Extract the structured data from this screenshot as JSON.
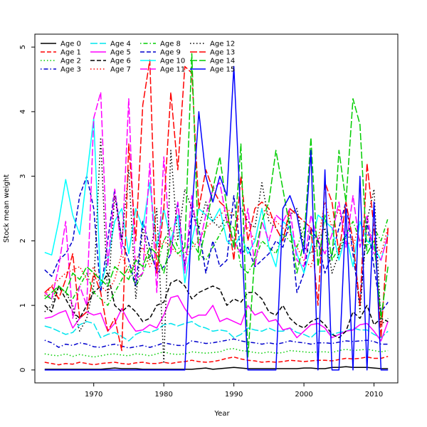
{
  "chart_data": {
    "type": "line",
    "title": "",
    "xlabel": "Year",
    "ylabel": "Stock mean weight",
    "xlim": [
      1963,
      2012
    ],
    "ylim": [
      0,
      5
    ],
    "x_ticks": [
      1970,
      1980,
      1990,
      2000,
      2010
    ],
    "y_ticks": [
      0,
      1,
      2,
      3,
      4,
      5
    ],
    "grid": false,
    "legend_position": "top-left",
    "x": [
      1963,
      1964,
      1965,
      1966,
      1967,
      1968,
      1969,
      1970,
      1971,
      1972,
      1973,
      1974,
      1975,
      1976,
      1977,
      1978,
      1979,
      1980,
      1981,
      1982,
      1983,
      1984,
      1985,
      1986,
      1987,
      1988,
      1989,
      1990,
      1991,
      1992,
      1993,
      1994,
      1995,
      1996,
      1997,
      1998,
      1999,
      2000,
      2001,
      2002,
      2003,
      2004,
      2005,
      2006,
      2007,
      2008,
      2009,
      2010,
      2011,
      2012
    ],
    "series": [
      {
        "name": "Age 0",
        "color": "#000000",
        "dash": "solid",
        "values": [
          0.01,
          0.01,
          0.01,
          0.01,
          0.01,
          0.01,
          0.01,
          0.01,
          0.01,
          0.02,
          0.03,
          0.02,
          0.02,
          0.02,
          0.01,
          0.01,
          0.01,
          0.01,
          0.01,
          0.01,
          0.01,
          0.01,
          0.02,
          0.03,
          0.01,
          0.02,
          0.03,
          0.04,
          0.03,
          0.02,
          0.02,
          0.02,
          0.02,
          0.02,
          0.02,
          0.02,
          0.02,
          0.03,
          0.03,
          0.02,
          0.02,
          0.04,
          0.04,
          0.05,
          0.04,
          0.04,
          0.04,
          0.03,
          0.02,
          0.02
        ]
      },
      {
        "name": "Age 1",
        "color": "#ff0000",
        "dash": "dash",
        "values": [
          0.12,
          0.1,
          0.08,
          0.1,
          0.09,
          0.12,
          0.1,
          0.08,
          0.1,
          0.11,
          0.12,
          0.1,
          0.09,
          0.11,
          0.12,
          0.1,
          0.1,
          0.12,
          0.1,
          0.12,
          0.13,
          0.15,
          0.13,
          0.12,
          0.13,
          0.15,
          0.18,
          0.2,
          0.17,
          0.15,
          0.14,
          0.12,
          0.13,
          0.12,
          0.13,
          0.15,
          0.14,
          0.13,
          0.14,
          0.15,
          0.15,
          0.14,
          0.16,
          0.18,
          0.17,
          0.18,
          0.2,
          0.18,
          0.18,
          0.21
        ]
      },
      {
        "name": "Age 2",
        "color": "#00cd00",
        "dash": "dot",
        "values": [
          0.25,
          0.23,
          0.22,
          0.25,
          0.21,
          0.24,
          0.22,
          0.2,
          0.22,
          0.24,
          0.25,
          0.23,
          0.22,
          0.25,
          0.24,
          0.22,
          0.25,
          0.28,
          0.25,
          0.24,
          0.25,
          0.28,
          0.27,
          0.26,
          0.27,
          0.28,
          0.32,
          0.33,
          0.3,
          0.29,
          0.27,
          0.26,
          0.28,
          0.26,
          0.27,
          0.3,
          0.29,
          0.28,
          0.27,
          0.28,
          0.28,
          0.27,
          0.3,
          0.32,
          0.3,
          0.31,
          0.32,
          0.3,
          0.28,
          0.3
        ]
      },
      {
        "name": "Age 3",
        "color": "#0000cd",
        "dash": "dashdot",
        "values": [
          0.46,
          0.42,
          0.35,
          0.4,
          0.38,
          0.42,
          0.4,
          0.36,
          0.35,
          0.38,
          0.4,
          0.37,
          0.34,
          0.36,
          0.38,
          0.35,
          0.38,
          0.42,
          0.4,
          0.38,
          0.38,
          0.45,
          0.43,
          0.41,
          0.42,
          0.44,
          0.46,
          0.48,
          0.45,
          0.43,
          0.42,
          0.4,
          0.42,
          0.4,
          0.42,
          0.45,
          0.43,
          0.42,
          0.4,
          0.42,
          0.42,
          0.41,
          0.43,
          0.45,
          0.44,
          0.45,
          0.46,
          0.44,
          0.4,
          0.4
        ]
      },
      {
        "name": "Age 4",
        "color": "#00e5ee",
        "dash": "longdash",
        "values": [
          0.68,
          0.65,
          0.6,
          0.55,
          0.58,
          0.7,
          0.75,
          0.72,
          0.5,
          0.55,
          0.58,
          0.52,
          0.45,
          0.55,
          0.6,
          0.58,
          0.62,
          0.7,
          0.72,
          0.68,
          0.72,
          0.75,
          0.68,
          0.65,
          0.6,
          0.62,
          0.6,
          0.5,
          0.55,
          0.65,
          0.62,
          0.6,
          0.65,
          0.6,
          0.6,
          0.65,
          0.58,
          0.55,
          0.5,
          0.6,
          0.6,
          0.55,
          0.58,
          0.6,
          0.65,
          0.62,
          0.62,
          0.55,
          0.5,
          0.6
        ]
      },
      {
        "name": "Age 5",
        "color": "#ff00ff",
        "dash": "solid",
        "values": [
          0.8,
          0.82,
          0.88,
          0.92,
          0.65,
          0.8,
          0.9,
          0.85,
          0.88,
          0.6,
          0.72,
          0.95,
          0.75,
          0.6,
          0.62,
          0.7,
          0.65,
          0.85,
          1.12,
          1.15,
          0.95,
          0.8,
          0.85,
          0.85,
          1.0,
          0.75,
          0.8,
          0.75,
          0.7,
          1.0,
          0.85,
          0.9,
          0.75,
          0.78,
          0.62,
          0.65,
          0.5,
          0.6,
          0.7,
          0.72,
          0.65,
          0.5,
          0.55,
          0.6,
          0.62,
          0.7,
          0.72,
          0.6,
          0.45,
          0.75
        ]
      },
      {
        "name": "Age 6",
        "color": "#000000",
        "dash": "dash",
        "values": [
          1.0,
          0.9,
          1.3,
          1.1,
          0.9,
          0.8,
          1.0,
          1.2,
          1.3,
          1.5,
          1.0,
          0.9,
          1.0,
          0.9,
          0.75,
          0.8,
          1.0,
          1.05,
          1.35,
          1.4,
          1.3,
          1.1,
          1.2,
          1.25,
          1.3,
          1.25,
          1.0,
          1.1,
          1.05,
          1.2,
          1.2,
          1.1,
          0.9,
          0.85,
          1.0,
          0.8,
          0.7,
          0.65,
          0.75,
          0.8,
          0.7,
          0.55,
          0.5,
          0.6,
          0.9,
          0.8,
          1.0,
          0.7,
          0.8,
          0.75
        ]
      },
      {
        "name": "Age 7",
        "color": "#ff0000",
        "dash": "dot",
        "values": [
          1.15,
          1.3,
          1.4,
          1.5,
          1.55,
          1.6,
          1.4,
          1.6,
          1.3,
          1.2,
          1.4,
          1.8,
          1.5,
          1.7,
          1.9,
          1.6,
          1.8,
          2.0,
          1.9,
          1.8,
          1.7,
          1.9,
          2.0,
          2.2,
          2.3,
          2.4,
          2.5,
          2.4,
          2.3,
          2.2,
          2.0,
          2.5,
          2.4,
          2.3,
          2.2,
          2.1,
          1.9,
          1.7,
          1.6,
          2.0,
          2.6,
          2.2,
          2.5,
          2.0,
          1.9,
          2.3,
          2.1,
          2.0,
          1.8,
          2.2
        ]
      },
      {
        "name": "Age 8",
        "color": "#00cd00",
        "dash": "dashdot",
        "values": [
          1.15,
          1.1,
          1.3,
          1.2,
          1.1,
          1.3,
          1.5,
          1.2,
          1.1,
          1.0,
          1.2,
          1.4,
          1.6,
          1.3,
          1.5,
          1.8,
          1.6,
          2.0,
          2.2,
          1.9,
          1.8,
          2.0,
          1.8,
          1.7,
          1.9,
          2.1,
          2.3,
          2.2,
          1.6,
          1.5,
          1.7,
          2.0,
          1.9,
          1.8,
          2.1,
          2.0,
          1.9,
          2.2,
          2.1,
          2.0,
          1.8,
          1.7,
          1.9,
          2.1,
          2.3,
          2.0,
          1.9,
          2.2,
          2.0,
          2.35
        ]
      },
      {
        "name": "Age 9",
        "color": "#0000cd",
        "dash": "dash",
        "values": [
          1.55,
          1.45,
          1.7,
          1.8,
          2.0,
          2.7,
          3.0,
          2.5,
          1.2,
          2.0,
          2.8,
          2.0,
          1.7,
          1.3,
          2.3,
          1.9,
          1.5,
          1.6,
          1.8,
          2.6,
          1.6,
          2.4,
          2.2,
          1.5,
          2.0,
          1.6,
          1.7,
          2.7,
          1.8,
          1.9,
          1.6,
          1.7,
          1.8,
          2.0,
          1.9,
          2.3,
          1.2,
          1.5,
          2.2,
          2.0,
          1.5,
          1.8,
          2.2,
          2.6,
          1.8,
          1.0,
          2.3,
          1.6,
          0.9,
          1.05
        ]
      },
      {
        "name": "Age 10",
        "color": "#00ffff",
        "dash": "solid",
        "values": [
          1.82,
          1.78,
          2.3,
          2.95,
          2.4,
          2.1,
          3.0,
          3.9,
          1.3,
          1.7,
          2.3,
          2.5,
          1.8,
          2.5,
          2.2,
          2.9,
          1.9,
          2.5,
          2.0,
          2.4,
          1.35,
          2.0,
          2.5,
          2.4,
          2.3,
          2.5,
          2.0,
          1.9,
          2.1,
          1.8,
          2.0,
          2.5,
          1.9,
          1.6,
          2.3,
          2.2,
          1.8,
          1.5,
          1.9,
          2.4,
          2.3,
          2.2,
          1.7,
          2.1,
          1.6,
          2.3,
          2.0,
          1.9,
          1.7,
          2.1
        ]
      },
      {
        "name": "Age 11",
        "color": "#ff00ff",
        "dash": "longdash",
        "values": [
          1.2,
          1.1,
          1.6,
          2.3,
          0.8,
          1.3,
          1.0,
          3.9,
          4.3,
          1.6,
          2.8,
          1.8,
          4.2,
          1.4,
          1.5,
          3.2,
          1.2,
          3.3,
          1.8,
          2.6,
          1.5,
          2.7,
          1.9,
          2.4,
          2.8,
          2.9,
          2.3,
          2.0,
          1.8,
          2.5,
          1.6,
          2.3,
          2.0,
          2.4,
          2.3,
          2.5,
          1.7,
          1.6,
          2.4,
          2.0,
          1.8,
          2.1,
          2.6,
          1.9,
          2.7,
          1.9,
          2.4,
          1.8,
          1.7,
          2.1
        ]
      },
      {
        "name": "Age 12",
        "color": "#000000",
        "dash": "dot",
        "values": [
          0.9,
          1.0,
          1.3,
          1.2,
          1.0,
          0.6,
          0.8,
          1.3,
          3.6,
          1.1,
          2.7,
          2.0,
          3.1,
          1.1,
          2.2,
          1.7,
          2.5,
          0.1,
          3.4,
          2.0,
          2.8,
          2.5,
          2.2,
          2.6,
          2.3,
          2.2,
          2.4,
          2.4,
          2.5,
          2.3,
          2.2,
          2.9,
          2.3,
          2.2,
          2.0,
          2.4,
          2.5,
          1.9,
          1.8,
          2.0,
          2.2,
          1.5,
          1.8,
          2.1,
          2.0,
          0.9,
          2.3,
          2.8,
          0.7,
          0.8
        ]
      },
      {
        "name": "Age 13",
        "color": "#ff0000",
        "dash": "longdash",
        "values": [
          1.2,
          1.3,
          1.1,
          1.4,
          1.8,
          0.8,
          0.9,
          1.5,
          1.2,
          0.6,
          0.8,
          0.3,
          3.5,
          2.0,
          4.1,
          4.8,
          1.5,
          2.5,
          4.3,
          3.1,
          4.7,
          4.6,
          2.5,
          3.1,
          2.8,
          2.6,
          2.5,
          1.7,
          3.0,
          2.0,
          2.5,
          2.6,
          2.5,
          2.2,
          2.0,
          2.5,
          2.4,
          2.3,
          2.2,
          1.0,
          2.9,
          2.6,
          1.8,
          2.6,
          2.0,
          1.0,
          3.2,
          2.2,
          0.5,
          2.2
        ]
      },
      {
        "name": "Age 14",
        "color": "#00cd00",
        "dash": "longdash",
        "values": [
          1.1,
          1.2,
          1.3,
          1.2,
          1.5,
          1.4,
          1.6,
          1.5,
          1.4,
          1.3,
          1.6,
          1.5,
          1.4,
          1.7,
          1.6,
          1.9,
          1.8,
          1.5,
          2.0,
          1.8,
          1.9,
          4.9,
          1.7,
          2.2,
          2.8,
          3.3,
          2.5,
          1.9,
          3.5,
          0.2,
          1.8,
          2.3,
          2.6,
          3.4,
          2.8,
          2.2,
          1.5,
          2.0,
          3.6,
          1.6,
          2.4,
          1.7,
          3.4,
          2.6,
          4.2,
          3.8,
          1.8,
          2.0,
          0.8,
          1.6
        ]
      },
      {
        "name": "Age 15",
        "color": "#0000ff",
        "dash": "solid",
        "values": [
          0,
          0,
          0,
          0,
          0,
          0,
          0,
          0,
          0,
          0,
          0,
          0,
          0,
          0,
          0,
          0,
          0,
          0,
          0,
          0,
          0,
          2.4,
          4.0,
          3.0,
          2.6,
          3.0,
          2.7,
          4.7,
          2.3,
          0,
          0,
          0,
          0,
          0,
          2.5,
          2.7,
          2.4,
          1.8,
          3.4,
          0,
          3.1,
          0,
          0,
          2.5,
          0,
          3.0,
          0,
          2.6,
          0,
          0
        ]
      }
    ]
  }
}
